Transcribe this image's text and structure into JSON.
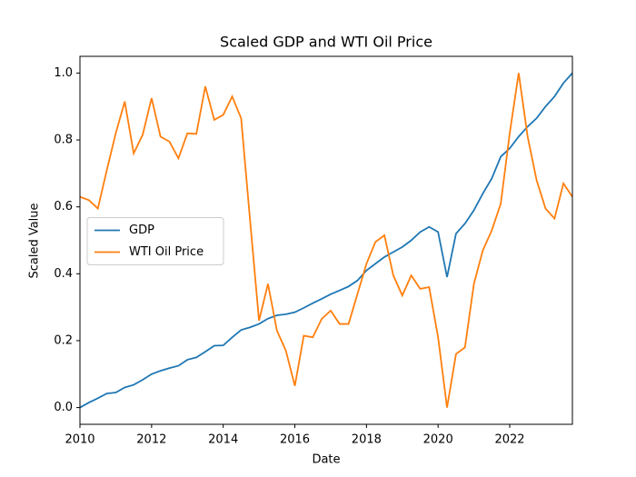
{
  "chart_data": {
    "type": "line",
    "title": "Scaled GDP and WTI Oil Price",
    "xlabel": "Date",
    "ylabel": "Scaled Value",
    "x": [
      2010,
      2010.25,
      2010.5,
      2010.75,
      2011,
      2011.25,
      2011.5,
      2011.75,
      2012,
      2012.25,
      2012.5,
      2012.75,
      2013,
      2013.25,
      2013.5,
      2013.75,
      2014,
      2014.25,
      2014.5,
      2014.75,
      2015,
      2015.25,
      2015.5,
      2015.75,
      2016,
      2016.25,
      2016.5,
      2016.75,
      2017,
      2017.25,
      2017.5,
      2017.75,
      2018,
      2018.25,
      2018.5,
      2018.75,
      2019,
      2019.25,
      2019.5,
      2019.75,
      2020,
      2020.25,
      2020.5,
      2020.75,
      2021,
      2021.25,
      2021.5,
      2021.75,
      2022,
      2022.25,
      2022.5,
      2022.75,
      2023,
      2023.25,
      2023.5,
      2023.75
    ],
    "series": [
      {
        "name": "GDP",
        "color": "#1f77b4",
        "values": [
          0,
          0.015,
          0.028,
          0.042,
          0.045,
          0.06,
          0.068,
          0.083,
          0.1,
          0.11,
          0.118,
          0.125,
          0.143,
          0.15,
          0.167,
          0.185,
          0.186,
          0.21,
          0.232,
          0.24,
          0.25,
          0.266,
          0.276,
          0.279,
          0.285,
          0.298,
          0.312,
          0.325,
          0.339,
          0.35,
          0.362,
          0.38,
          0.41,
          0.43,
          0.45,
          0.465,
          0.48,
          0.5,
          0.525,
          0.54,
          0.525,
          0.39,
          0.52,
          0.55,
          0.59,
          0.64,
          0.685,
          0.75,
          0.775,
          0.81,
          0.84,
          0.865,
          0.9,
          0.93,
          0.97,
          1.0
        ]
      },
      {
        "name": "WTI Oil Price",
        "color": "#ff7f0e",
        "values": [
          0.63,
          0.62,
          0.595,
          0.71,
          0.82,
          0.915,
          0.76,
          0.815,
          0.925,
          0.81,
          0.795,
          0.745,
          0.82,
          0.818,
          0.96,
          0.86,
          0.875,
          0.93,
          0.865,
          0.56,
          0.26,
          0.37,
          0.23,
          0.17,
          0.065,
          0.215,
          0.21,
          0.265,
          0.29,
          0.25,
          0.25,
          0.34,
          0.43,
          0.495,
          0.515,
          0.395,
          0.335,
          0.395,
          0.355,
          0.36,
          0.21,
          0.0,
          0.16,
          0.18,
          0.37,
          0.47,
          0.53,
          0.61,
          0.82,
          1.0,
          0.81,
          0.68,
          0.595,
          0.565,
          0.67,
          0.63
        ]
      }
    ],
    "xlim": [
      2010,
      2023.75
    ],
    "xticks": [
      2010,
      2012,
      2014,
      2016,
      2018,
      2020,
      2022
    ],
    "ylim": [
      -0.05,
      1.05
    ],
    "yticks": [
      {
        "value": 0,
        "label": "0.0"
      },
      0.2,
      0.4,
      0.6,
      0.8,
      {
        "value": 1,
        "label": "1.0"
      }
    ],
    "legend": "center left"
  }
}
